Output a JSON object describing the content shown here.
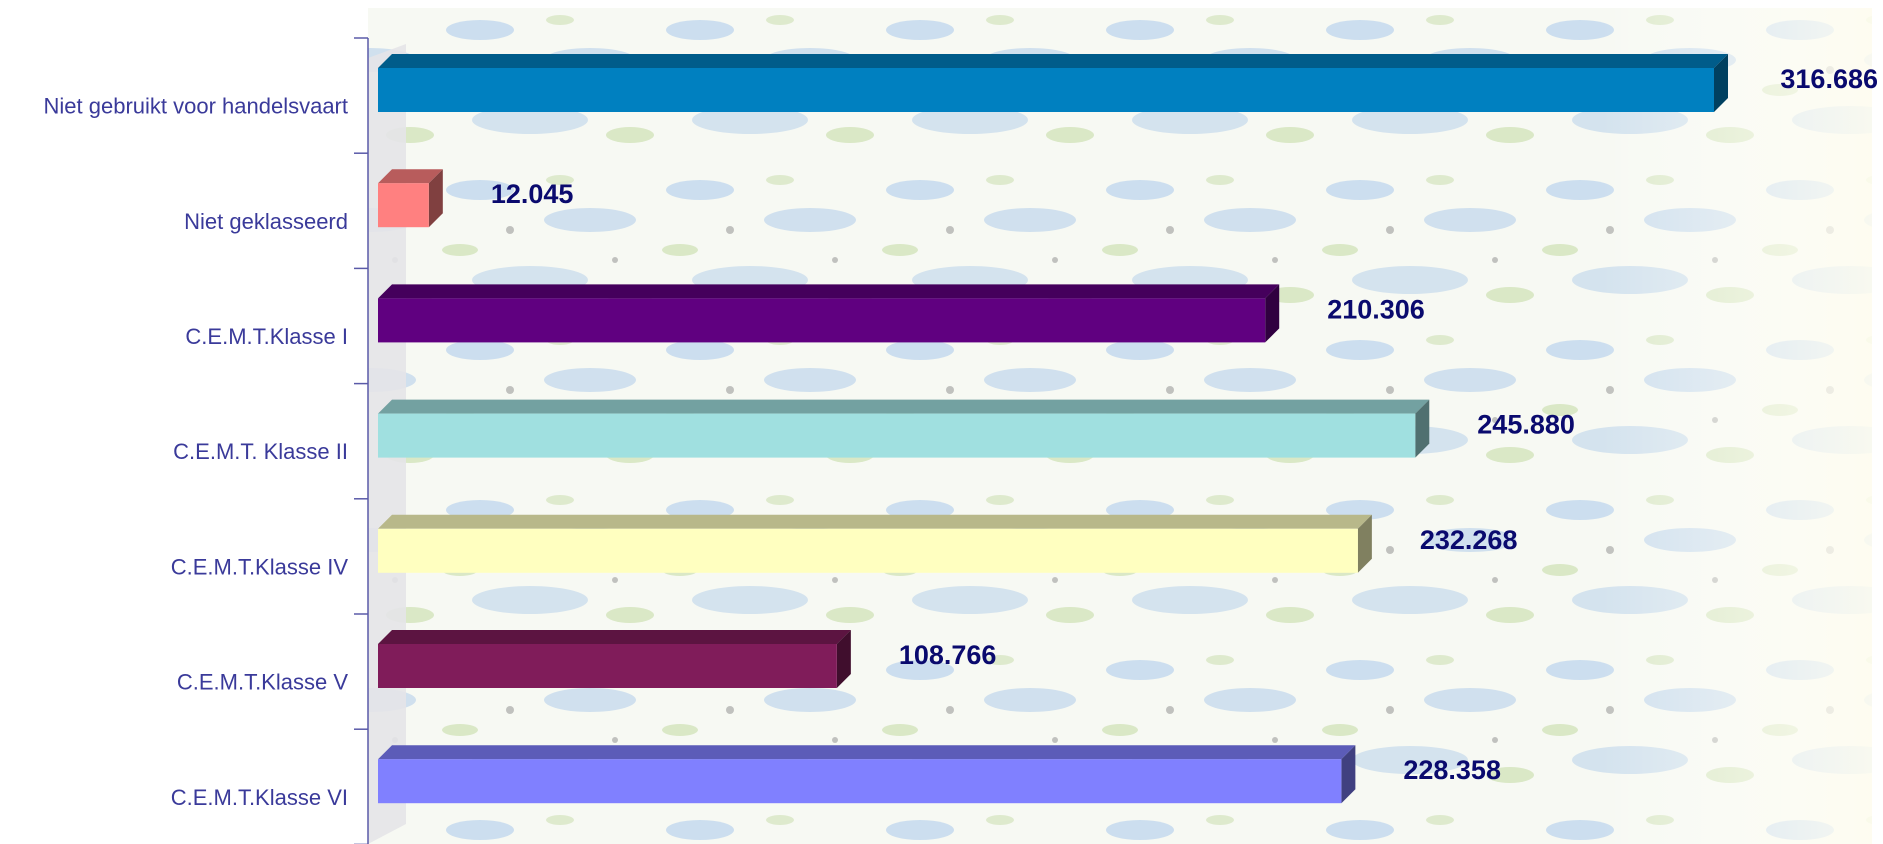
{
  "chart_data": {
    "type": "bar",
    "orientation": "horizontal",
    "style": "3d",
    "categories": [
      "Niet gebruikt voor handelsvaart",
      "Niet geklasseerd",
      "C.E.M.T.Klasse  I",
      "C.E.M.T. Klasse  II",
      "C.E.M.T.Klasse IV",
      "C.E.M.T.Klasse  V",
      "C.E.M.T.Klasse VI"
    ],
    "values": [
      316686,
      12045,
      210306,
      245880,
      232268,
      108766,
      228358
    ],
    "value_labels": [
      "316.686",
      "12.045",
      "210.306",
      "245.880",
      "232.268",
      "108.766",
      "228.358"
    ],
    "colors": [
      "#0080c0",
      "#ff8080",
      "#600080",
      "#a0e0e0",
      "#ffffc0",
      "#801c5a",
      "#8080ff"
    ],
    "xlim": [
      0,
      320000
    ],
    "grid": false,
    "legend": "none",
    "label_color": "#3a3a9a",
    "value_label_color": "#0a0a6e",
    "background": "map-texture"
  }
}
